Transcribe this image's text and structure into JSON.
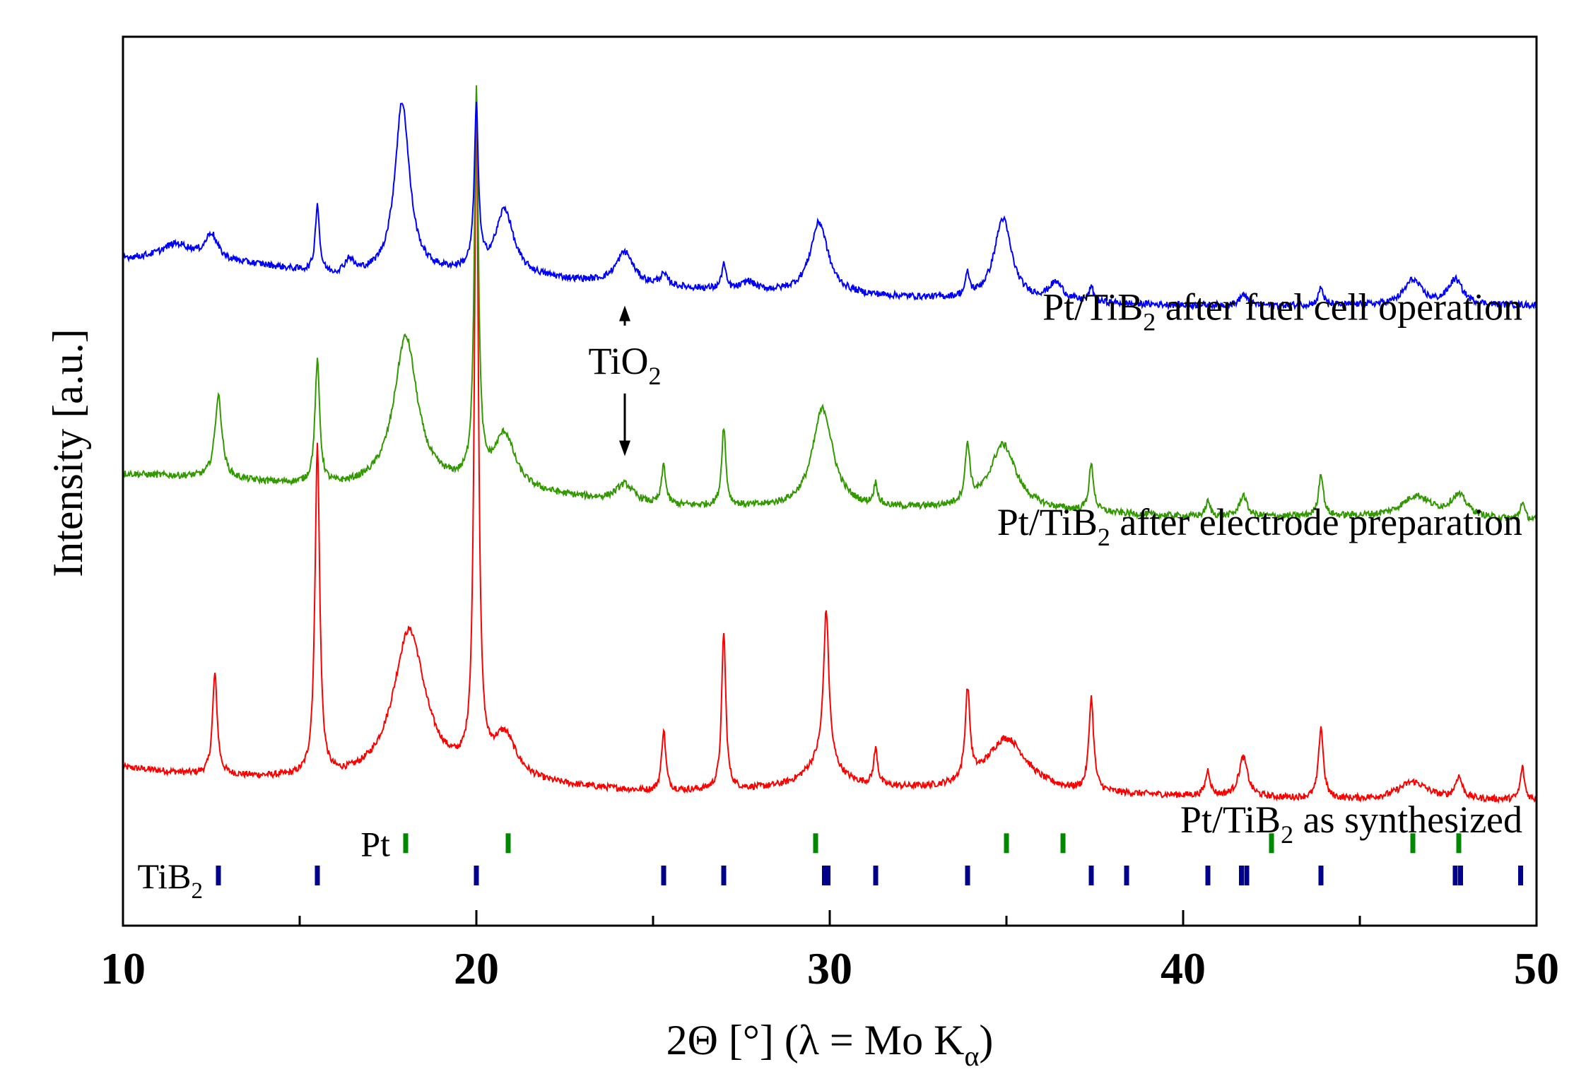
{
  "chart_data": {
    "type": "line",
    "xlabel": "2Θ [°] (λ = Mo K",
    "xlabel_sub": "α",
    "xlabel_end": ")",
    "ylabel": "Intensity [a.u.]",
    "xlim": [
      10,
      50
    ],
    "ylim": [
      -2.2,
      10.2
    ],
    "x_ticks": [
      10,
      20,
      30,
      40,
      50
    ],
    "x_tick_labels": [
      "10",
      "20",
      "30",
      "40",
      "50"
    ],
    "y_ticks_shown": false,
    "series": [
      {
        "name": "Pt/TiB2 as synthesized",
        "label_main": "Pt/TiB",
        "label_sub": "2",
        "label_rest": " as synthesized",
        "color": "#ff0000",
        "baseline": 0,
        "background": [
          [
            10,
            0.0
          ],
          [
            12,
            -0.1
          ],
          [
            16,
            -0.2
          ],
          [
            20,
            -0.2
          ],
          [
            25,
            -0.35
          ],
          [
            30,
            -0.3
          ],
          [
            35,
            -0.35
          ],
          [
            40,
            -0.4
          ],
          [
            45,
            -0.45
          ],
          [
            50,
            -0.45
          ]
        ],
        "peaks": [
          {
            "x": 12.6,
            "h": 1.4,
            "w": 0.08
          },
          {
            "x": 15.5,
            "h": 4.6,
            "w": 0.08
          },
          {
            "x": 18.1,
            "h": 2.1,
            "w": 0.55
          },
          {
            "x": 20.0,
            "h": 9.2,
            "w": 0.07
          },
          {
            "x": 20.8,
            "h": 0.6,
            "w": 0.4
          },
          {
            "x": 25.3,
            "h": 0.85,
            "w": 0.07
          },
          {
            "x": 27.0,
            "h": 2.2,
            "w": 0.07
          },
          {
            "x": 29.8,
            "h": 0.4,
            "w": 0.55
          },
          {
            "x": 29.9,
            "h": 2.1,
            "w": 0.09
          },
          {
            "x": 31.3,
            "h": 0.5,
            "w": 0.07
          },
          {
            "x": 33.9,
            "h": 1.25,
            "w": 0.08
          },
          {
            "x": 35.0,
            "h": 0.75,
            "w": 0.7
          },
          {
            "x": 37.4,
            "h": 1.3,
            "w": 0.08
          },
          {
            "x": 40.7,
            "h": 0.35,
            "w": 0.08
          },
          {
            "x": 41.7,
            "h": 0.55,
            "w": 0.15
          },
          {
            "x": 43.9,
            "h": 1.0,
            "w": 0.08
          },
          {
            "x": 46.5,
            "h": 0.25,
            "w": 0.5
          },
          {
            "x": 47.8,
            "h": 0.3,
            "w": 0.12
          },
          {
            "x": 49.6,
            "h": 0.45,
            "w": 0.07
          }
        ]
      },
      {
        "name": "Pt/TiB2 after electrode preparation",
        "label_main": "Pt/TiB",
        "label_sub": "2",
        "label_rest": " after electrode preparation",
        "color": "#339900",
        "baseline": 4.1,
        "background": [
          [
            10,
            0.0
          ],
          [
            12,
            -0.05
          ],
          [
            16,
            -0.2
          ],
          [
            20,
            -0.2
          ],
          [
            25,
            -0.45
          ],
          [
            30,
            -0.5
          ],
          [
            35,
            -0.5
          ],
          [
            40,
            -0.6
          ],
          [
            45,
            -0.6
          ],
          [
            50,
            -0.65
          ]
        ],
        "peaks": [
          {
            "x": 12.7,
            "h": 1.15,
            "w": 0.12
          },
          {
            "x": 15.5,
            "h": 1.7,
            "w": 0.08
          },
          {
            "x": 18.0,
            "h": 2.1,
            "w": 0.4
          },
          {
            "x": 20.0,
            "h": 5.4,
            "w": 0.07
          },
          {
            "x": 20.8,
            "h": 0.75,
            "w": 0.35
          },
          {
            "x": 24.2,
            "h": 0.25,
            "w": 0.3
          },
          {
            "x": 25.3,
            "h": 0.55,
            "w": 0.07
          },
          {
            "x": 27.0,
            "h": 1.1,
            "w": 0.07
          },
          {
            "x": 29.8,
            "h": 1.4,
            "w": 0.35
          },
          {
            "x": 31.3,
            "h": 0.3,
            "w": 0.07
          },
          {
            "x": 33.9,
            "h": 0.8,
            "w": 0.08
          },
          {
            "x": 34.9,
            "h": 0.9,
            "w": 0.45
          },
          {
            "x": 37.4,
            "h": 0.65,
            "w": 0.08
          },
          {
            "x": 40.7,
            "h": 0.2,
            "w": 0.08
          },
          {
            "x": 41.7,
            "h": 0.3,
            "w": 0.12
          },
          {
            "x": 43.9,
            "h": 0.6,
            "w": 0.08
          },
          {
            "x": 46.6,
            "h": 0.3,
            "w": 0.5
          },
          {
            "x": 47.8,
            "h": 0.3,
            "w": 0.3
          },
          {
            "x": 49.6,
            "h": 0.25,
            "w": 0.07
          }
        ]
      },
      {
        "name": "Pt/TiB2 after fuel cell operation",
        "label_main": "Pt/TiB",
        "label_sub": "2",
        "label_rest": " after fuel cell operation",
        "color": "#0000ff",
        "baseline": 7.1,
        "background": [
          [
            10,
            0.0
          ],
          [
            12,
            0.0
          ],
          [
            14,
            -0.1
          ],
          [
            16,
            -0.25
          ],
          [
            20,
            -0.2
          ],
          [
            25,
            -0.4
          ],
          [
            30,
            -0.5
          ],
          [
            35,
            -0.6
          ],
          [
            40,
            -0.65
          ],
          [
            45,
            -0.65
          ],
          [
            50,
            -0.65
          ]
        ],
        "peaks": [
          {
            "x": 11.5,
            "h": 0.2,
            "w": 0.5
          },
          {
            "x": 12.5,
            "h": 0.35,
            "w": 0.2
          },
          {
            "x": 15.5,
            "h": 0.95,
            "w": 0.07
          },
          {
            "x": 16.4,
            "h": 0.2,
            "w": 0.15
          },
          {
            "x": 17.9,
            "h": 2.4,
            "w": 0.25
          },
          {
            "x": 20.0,
            "h": 2.2,
            "w": 0.07
          },
          {
            "x": 20.8,
            "h": 0.9,
            "w": 0.3
          },
          {
            "x": 24.2,
            "h": 0.45,
            "w": 0.3
          },
          {
            "x": 25.3,
            "h": 0.15,
            "w": 0.15
          },
          {
            "x": 27.0,
            "h": 0.35,
            "w": 0.07
          },
          {
            "x": 27.7,
            "h": 0.12,
            "w": 0.2
          },
          {
            "x": 29.7,
            "h": 1.0,
            "w": 0.3
          },
          {
            "x": 33.9,
            "h": 0.3,
            "w": 0.07
          },
          {
            "x": 34.9,
            "h": 1.15,
            "w": 0.3
          },
          {
            "x": 36.4,
            "h": 0.25,
            "w": 0.25
          },
          {
            "x": 37.4,
            "h": 0.2,
            "w": 0.08
          },
          {
            "x": 41.7,
            "h": 0.15,
            "w": 0.12
          },
          {
            "x": 43.9,
            "h": 0.25,
            "w": 0.08
          },
          {
            "x": 46.5,
            "h": 0.35,
            "w": 0.3
          },
          {
            "x": 47.7,
            "h": 0.35,
            "w": 0.25
          }
        ]
      }
    ],
    "reference_markers": [
      {
        "name": "Pt",
        "label_main": "Pt",
        "label_sub": "",
        "color": "#008800",
        "y": -1.05,
        "positions": [
          18.0,
          20.9,
          29.6,
          35.0,
          36.6,
          42.5,
          46.5,
          47.8
        ]
      },
      {
        "name": "TiB2",
        "label_main": "TiB",
        "label_sub": "2",
        "color": "#00008b",
        "y": -1.5,
        "positions": [
          12.7,
          15.5,
          20.0,
          25.3,
          27.0,
          29.85,
          29.95,
          31.3,
          33.9,
          37.4,
          38.4,
          40.7,
          41.65,
          41.8,
          43.9,
          47.7,
          47.85,
          49.55
        ]
      }
    ],
    "annotations": [
      {
        "text_main": "TiO",
        "text_sub": "2",
        "x": 24.2,
        "label_y": 5.5,
        "arrow_up_to": 6.45,
        "arrow_down_to": 4.35
      }
    ]
  }
}
